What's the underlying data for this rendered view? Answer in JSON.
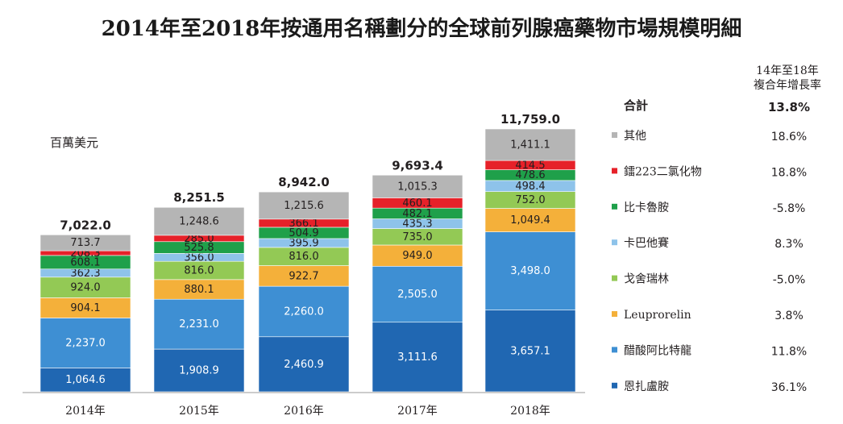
{
  "chart_data": {
    "type": "bar",
    "stacked": true,
    "title": "2014年至2018年按通用名稱劃分的全球前列腺癌藥物市場規模明細",
    "unit_label": "百萬美元",
    "categories": [
      "2014年",
      "2015年",
      "2016年",
      "2017年",
      "2018年"
    ],
    "totals": [
      "7,022.0",
      "8,251.5",
      "8,942.0",
      "9,693.4",
      "11,759.0"
    ],
    "total_values": [
      7022.0,
      8251.5,
      8942.0,
      9693.4,
      11759.0
    ],
    "series": [
      {
        "name": "恩扎盧胺",
        "color": "#2067b2",
        "cagr": "36.1%",
        "values": [
          1064.6,
          1908.9,
          2460.9,
          3111.6,
          3657.1
        ],
        "labels": [
          "1,064.6",
          "1,908.9",
          "2,460.9",
          "3,111.6",
          "3,657.1"
        ]
      },
      {
        "name": "醋酸阿比特龍",
        "color": "#3e8fd3",
        "cagr": "11.8%",
        "values": [
          2237.0,
          2231.0,
          2260.0,
          2505.0,
          3498.0
        ],
        "labels": [
          "2,237.0",
          "2,231.0",
          "2,260.0",
          "2,505.0",
          "3,498.0"
        ]
      },
      {
        "name": "Leuprorelin",
        "color": "#f4b03a",
        "cagr": "3.8%",
        "values": [
          904.1,
          880.1,
          922.7,
          949.0,
          1049.4
        ],
        "labels": [
          "904.1",
          "880.1",
          "922.7",
          "949.0",
          "1,049.4"
        ]
      },
      {
        "name": "戈舍瑞林",
        "color": "#93c955",
        "cagr": "-5.0%",
        "values": [
          924.0,
          816.0,
          816.0,
          735.0,
          752.0
        ],
        "labels": [
          "924.0",
          "816.0",
          "816.0",
          "735.0",
          "752.0"
        ]
      },
      {
        "name": "卡巴他賽",
        "color": "#8ec3ea",
        "cagr": "8.3%",
        "values": [
          362.3,
          356.0,
          395.9,
          435.3,
          498.4
        ],
        "labels": [
          "362.3",
          "356.0",
          "395.9",
          "435.3",
          "498.4"
        ]
      },
      {
        "name": "比卡魯胺",
        "color": "#1fa04a",
        "cagr": "-5.8%",
        "values": [
          608.1,
          525.8,
          504.9,
          482.1,
          478.6
        ],
        "labels": [
          "608.1",
          "525.8",
          "504.9",
          "482.1",
          "478.6"
        ]
      },
      {
        "name": "鐳223二氯化物",
        "color": "#e62129",
        "cagr": "18.8%",
        "values": [
          208.3,
          285.0,
          366.1,
          460.1,
          414.5
        ],
        "labels": [
          "208.3",
          "285.0",
          "366.1",
          "460.1",
          "414.5"
        ]
      },
      {
        "name": "其他",
        "color": "#b5b5b5",
        "cagr": "18.6%",
        "values": [
          713.7,
          1248.6,
          1215.6,
          1015.3,
          1411.1
        ],
        "labels": [
          "713.7",
          "1,248.6",
          "1,215.6",
          "1,015.3",
          "1,411.1"
        ]
      }
    ],
    "cagr_header": [
      "14年至18年",
      "複合年增長率"
    ],
    "total_label": "合計",
    "total_cagr": "13.8%"
  }
}
